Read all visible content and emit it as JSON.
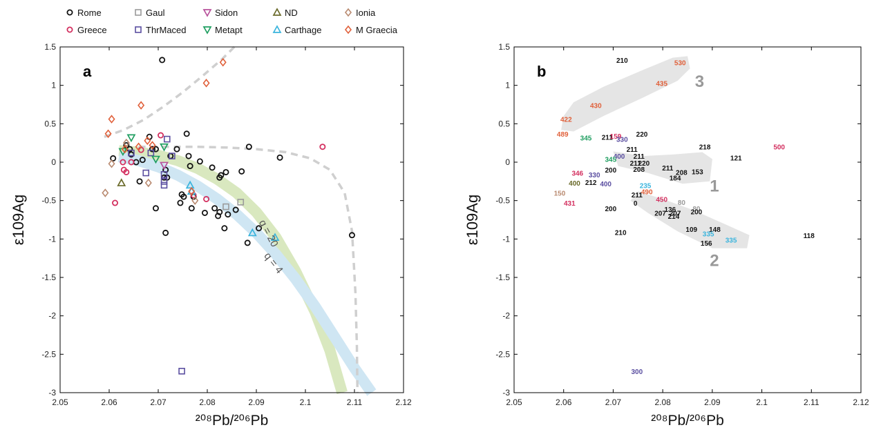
{
  "legend": [
    {
      "name": "Rome",
      "marker": "circle",
      "color": "#111111"
    },
    {
      "name": "Gaul",
      "marker": "square",
      "color": "#9a9a9a"
    },
    {
      "name": "Sidon",
      "marker": "tri-down",
      "color": "#b8529b"
    },
    {
      "name": "ND",
      "marker": "tri-up",
      "color": "#6a6a2a"
    },
    {
      "name": "Ionia",
      "marker": "diamond",
      "color": "#b98a70"
    },
    {
      "name": "Greece",
      "marker": "circle",
      "color": "#d32f5f"
    },
    {
      "name": "ThrMaced",
      "marker": "square",
      "color": "#5a4ea0"
    },
    {
      "name": "Metapt",
      "marker": "tri-down",
      "color": "#1f9e60"
    },
    {
      "name": "Carthage",
      "marker": "tri-up",
      "color": "#3ab4dd"
    },
    {
      "name": "M Graecia",
      "marker": "diamond",
      "color": "#e0603a"
    }
  ],
  "colors": {
    "Rome": "#111111",
    "Gaul": "#9a9a9a",
    "Sidon": "#b8529b",
    "ND": "#6a6a2a",
    "Ionia": "#b98a70",
    "Greece": "#d32f5f",
    "ThrMaced": "#5a4ea0",
    "Metapt": "#1f9e60",
    "Carthage": "#3ab4dd",
    "M Graecia": "#e0603a",
    "band_green": "#d9e8bf",
    "band_blue": "#cfe6f3",
    "dash": "#cfcfcf",
    "region": "#e5e5e5"
  },
  "axes": {
    "xlim": [
      2.05,
      2.12
    ],
    "ylim": [
      -3,
      1.5
    ],
    "xticks": [
      "2.05",
      "2.06",
      "2.07",
      "2.08",
      "2.09",
      "2.1",
      "2.11",
      "2.12"
    ],
    "yticks": [
      "1.5",
      "1",
      "0.5",
      "0",
      "-0.5",
      "-1",
      "-1.5",
      "-2",
      "-2.5",
      "-3"
    ],
    "xlabel": "²⁰⁸Pb/²⁰⁶Pb",
    "ylabel": "ε109Ag"
  },
  "panels": {
    "a": {
      "label": "a"
    },
    "b": {
      "label": "b"
    }
  },
  "chart_data": [
    {
      "type": "scatter",
      "panel": "a",
      "title": "",
      "xlabel": "²⁰⁸Pb/²⁰⁶Pb",
      "ylabel": "ε109Ag",
      "xlim": [
        2.05,
        2.12
      ],
      "ylim": [
        -3,
        1.5
      ],
      "grid": false,
      "legend_position": "top",
      "curve_labels": [
        "q = 20",
        "q = 4"
      ],
      "series": [
        {
          "name": "Rome",
          "points": [
            [
              2.0608,
              0.05
            ],
            [
              2.0635,
              0.22
            ],
            [
              2.0642,
              0.17
            ],
            [
              2.0645,
              0.1
            ],
            [
              2.0655,
              0.0
            ],
            [
              2.0668,
              0.03
            ],
            [
              2.0682,
              0.33
            ],
            [
              2.0688,
              0.17
            ],
            [
              2.0695,
              0.17
            ],
            [
              2.0708,
              1.33
            ],
            [
              2.0715,
              -0.1
            ],
            [
              2.0712,
              -0.2
            ],
            [
              2.0718,
              -0.2
            ],
            [
              2.0725,
              0.08
            ],
            [
              2.0738,
              0.17
            ],
            [
              2.0748,
              -0.42
            ],
            [
              2.0752,
              -0.45
            ],
            [
              2.0745,
              -0.53
            ],
            [
              2.0758,
              0.37
            ],
            [
              2.0762,
              0.08
            ],
            [
              2.0765,
              -0.05
            ],
            [
              2.0772,
              -0.45
            ],
            [
              2.0768,
              -0.6
            ],
            [
              2.0785,
              0.01
            ],
            [
              2.0795,
              -0.66
            ],
            [
              2.081,
              -0.07
            ],
            [
              2.0815,
              -0.6
            ],
            [
              2.0825,
              -0.2
            ],
            [
              2.0828,
              -0.17
            ],
            [
              2.0825,
              -0.65
            ],
            [
              2.0822,
              -0.7
            ],
            [
              2.0838,
              -0.13
            ],
            [
              2.0835,
              -0.86
            ],
            [
              2.0842,
              -0.68
            ],
            [
              2.0858,
              -0.62
            ],
            [
              2.087,
              -0.12
            ],
            [
              2.0885,
              0.2
            ],
            [
              2.0882,
              -1.05
            ],
            [
              2.0905,
              -0.86
            ],
            [
              2.0948,
              0.06
            ],
            [
              2.1095,
              -0.95
            ],
            [
              2.0695,
              -0.6
            ],
            [
              2.0715,
              -0.92
            ],
            [
              2.0662,
              -0.25
            ]
          ]
        },
        {
          "name": "Greece",
          "points": [
            [
              2.0612,
              -0.53
            ],
            [
              2.0628,
              0.0
            ],
            [
              2.063,
              -0.1
            ],
            [
              2.0635,
              -0.13
            ],
            [
              2.0645,
              0.0
            ],
            [
              2.0665,
              0.16
            ],
            [
              2.0705,
              0.35
            ],
            [
              2.0772,
              -0.43
            ],
            [
              2.0798,
              -0.48
            ],
            [
              2.1035,
              0.2
            ]
          ]
        },
        {
          "name": "Gaul",
          "points": [
            [
              2.0838,
              -0.58
            ],
            [
              2.0868,
              -0.52
            ]
          ]
        },
        {
          "name": "ThrMaced",
          "points": [
            [
              2.0645,
              0.12
            ],
            [
              2.0675,
              -0.14
            ],
            [
              2.0685,
              0.12
            ],
            [
              2.0712,
              -0.16
            ],
            [
              2.0712,
              -0.25
            ],
            [
              2.0712,
              -0.3
            ],
            [
              2.0718,
              0.3
            ],
            [
              2.0728,
              0.08
            ],
            [
              2.0748,
              -2.72
            ]
          ]
        },
        {
          "name": "Sidon",
          "points": [
            [
              2.0712,
              -0.04
            ]
          ]
        },
        {
          "name": "Metapt",
          "points": [
            [
              2.0628,
              0.14
            ],
            [
              2.0645,
              0.32
            ],
            [
              2.0695,
              0.04
            ],
            [
              2.0712,
              0.2
            ]
          ]
        },
        {
          "name": "ND",
          "points": [
            [
              2.0625,
              -0.27
            ]
          ]
        },
        {
          "name": "Carthage",
          "points": [
            [
              2.0765,
              -0.3
            ],
            [
              2.0768,
              -0.38
            ],
            [
              2.0892,
              -0.92
            ],
            [
              2.0938,
              -0.98
            ]
          ]
        },
        {
          "name": "Ionia",
          "points": [
            [
              2.0592,
              -0.4
            ],
            [
              2.0605,
              -0.02
            ],
            [
              2.0635,
              0.25
            ],
            [
              2.068,
              -0.27
            ],
            [
              2.0775,
              -0.5
            ]
          ]
        },
        {
          "name": "M Graecia",
          "points": [
            [
              2.0598,
              0.37
            ],
            [
              2.0605,
              0.56
            ],
            [
              2.0632,
              0.17
            ],
            [
              2.066,
              0.2
            ],
            [
              2.0665,
              0.74
            ],
            [
              2.0678,
              0.28
            ],
            [
              2.0688,
              0.22
            ],
            [
              2.0768,
              -0.38
            ],
            [
              2.0798,
              1.03
            ],
            [
              2.0832,
              1.3
            ]
          ]
        }
      ]
    },
    {
      "type": "scatter",
      "panel": "b",
      "title": "",
      "xlabel": "²⁰⁸Pb/²⁰⁶Pb",
      "ylabel": "ε109Ag",
      "xlim": [
        2.05,
        2.12
      ],
      "ylim": [
        -3,
        1.5
      ],
      "grid": false,
      "region_labels": [
        "1",
        "2",
        "3"
      ],
      "labels": [
        {
          "text": "210",
          "x": 2.0718,
          "y": 1.33,
          "group": "Rome"
        },
        {
          "text": "530",
          "x": 2.0835,
          "y": 1.3,
          "group": "M Graecia"
        },
        {
          "text": "435",
          "x": 2.0798,
          "y": 1.03,
          "group": "M Graecia"
        },
        {
          "text": "430",
          "x": 2.0665,
          "y": 0.74,
          "group": "M Graecia"
        },
        {
          "text": "422",
          "x": 2.0605,
          "y": 0.56,
          "group": "M Graecia"
        },
        {
          "text": "489",
          "x": 2.0598,
          "y": 0.37,
          "group": "M Graecia"
        },
        {
          "text": "220",
          "x": 2.0758,
          "y": 0.37,
          "group": "Rome"
        },
        {
          "text": "345",
          "x": 2.0645,
          "y": 0.32,
          "group": "Metapt"
        },
        {
          "text": "211",
          "x": 2.0688,
          "y": 0.33,
          "group": "Rome"
        },
        {
          "text": "159",
          "x": 2.0705,
          "y": 0.34,
          "group": "Greece"
        },
        {
          "text": "330",
          "x": 2.0718,
          "y": 0.3,
          "group": "ThrMaced"
        },
        {
          "text": "218",
          "x": 2.0885,
          "y": 0.2,
          "group": "Rome"
        },
        {
          "text": "500",
          "x": 2.1035,
          "y": 0.2,
          "group": "Greece"
        },
        {
          "text": "121",
          "x": 2.0948,
          "y": 0.06,
          "group": "Rome"
        },
        {
          "text": "211",
          "x": 2.0738,
          "y": 0.17,
          "group": "Rome"
        },
        {
          "text": "211",
          "x": 2.0752,
          "y": 0.08,
          "group": "Rome"
        },
        {
          "text": "211",
          "x": 2.0745,
          "y": -0.01,
          "group": "Rome"
        },
        {
          "text": "220",
          "x": 2.0762,
          "y": -0.01,
          "group": "Rome"
        },
        {
          "text": "208",
          "x": 2.0752,
          "y": -0.09,
          "group": "Rome"
        },
        {
          "text": "211",
          "x": 2.081,
          "y": -0.07,
          "group": "Rome"
        },
        {
          "text": "208",
          "x": 2.0838,
          "y": -0.13,
          "group": "Rome"
        },
        {
          "text": "153",
          "x": 2.087,
          "y": -0.12,
          "group": "Rome"
        },
        {
          "text": "184",
          "x": 2.0825,
          "y": -0.2,
          "group": "Rome"
        },
        {
          "text": "400",
          "x": 2.0712,
          "y": 0.08,
          "group": "ThrMaced"
        },
        {
          "text": "345",
          "x": 2.0695,
          "y": 0.04,
          "group": "Metapt"
        },
        {
          "text": "400",
          "x": 2.0622,
          "y": -0.27,
          "group": "ND"
        },
        {
          "text": "330",
          "x": 2.0662,
          "y": -0.16,
          "group": "ThrMaced"
        },
        {
          "text": "200",
          "x": 2.0695,
          "y": -0.1,
          "group": "Rome"
        },
        {
          "text": "212",
          "x": 2.0655,
          "y": -0.26,
          "group": "Rome"
        },
        {
          "text": "400",
          "x": 2.0685,
          "y": -0.28,
          "group": "ThrMaced"
        },
        {
          "text": "150",
          "x": 2.0592,
          "y": -0.4,
          "group": "Ionia"
        },
        {
          "text": "431",
          "x": 2.0612,
          "y": -0.53,
          "group": "Greece"
        },
        {
          "text": "346",
          "x": 2.0628,
          "y": -0.14,
          "group": "Greece"
        },
        {
          "text": "235",
          "x": 2.0765,
          "y": -0.3,
          "group": "Carthage"
        },
        {
          "text": "211",
          "x": 2.0748,
          "y": -0.42,
          "group": "Rome"
        },
        {
          "text": "0",
          "x": 2.0745,
          "y": -0.53,
          "group": "Rome"
        },
        {
          "text": "490",
          "x": 2.0768,
          "y": -0.38,
          "group": "M Graecia"
        },
        {
          "text": "450",
          "x": 2.0798,
          "y": -0.48,
          "group": "Greece"
        },
        {
          "text": "80",
          "x": 2.0838,
          "y": -0.52,
          "group": "Gaul"
        },
        {
          "text": "80",
          "x": 2.0868,
          "y": -0.6,
          "group": "Gaul"
        },
        {
          "text": "200",
          "x": 2.0695,
          "y": -0.6,
          "group": "Rome"
        },
        {
          "text": "136",
          "x": 2.0815,
          "y": -0.61,
          "group": "Rome"
        },
        {
          "text": "207",
          "x": 2.0795,
          "y": -0.66,
          "group": "Rome"
        },
        {
          "text": "207",
          "x": 2.0825,
          "y": -0.66,
          "group": "Rome"
        },
        {
          "text": "200",
          "x": 2.0868,
          "y": -0.64,
          "group": "Rome"
        },
        {
          "text": "214",
          "x": 2.0822,
          "y": -0.7,
          "group": "Rome"
        },
        {
          "text": "109",
          "x": 2.0858,
          "y": -0.87,
          "group": "Rome"
        },
        {
          "text": "148",
          "x": 2.0905,
          "y": -0.87,
          "group": "Rome"
        },
        {
          "text": "335",
          "x": 2.0892,
          "y": -0.93,
          "group": "Carthage"
        },
        {
          "text": "156",
          "x": 2.0888,
          "y": -1.05,
          "group": "Rome"
        },
        {
          "text": "335",
          "x": 2.0938,
          "y": -1.01,
          "group": "Carthage"
        },
        {
          "text": "118",
          "x": 2.1095,
          "y": -0.95,
          "group": "Rome"
        },
        {
          "text": "210",
          "x": 2.0715,
          "y": -0.91,
          "group": "Rome"
        },
        {
          "text": "300",
          "x": 2.0748,
          "y": -2.72,
          "group": "ThrMaced"
        }
      ]
    }
  ]
}
